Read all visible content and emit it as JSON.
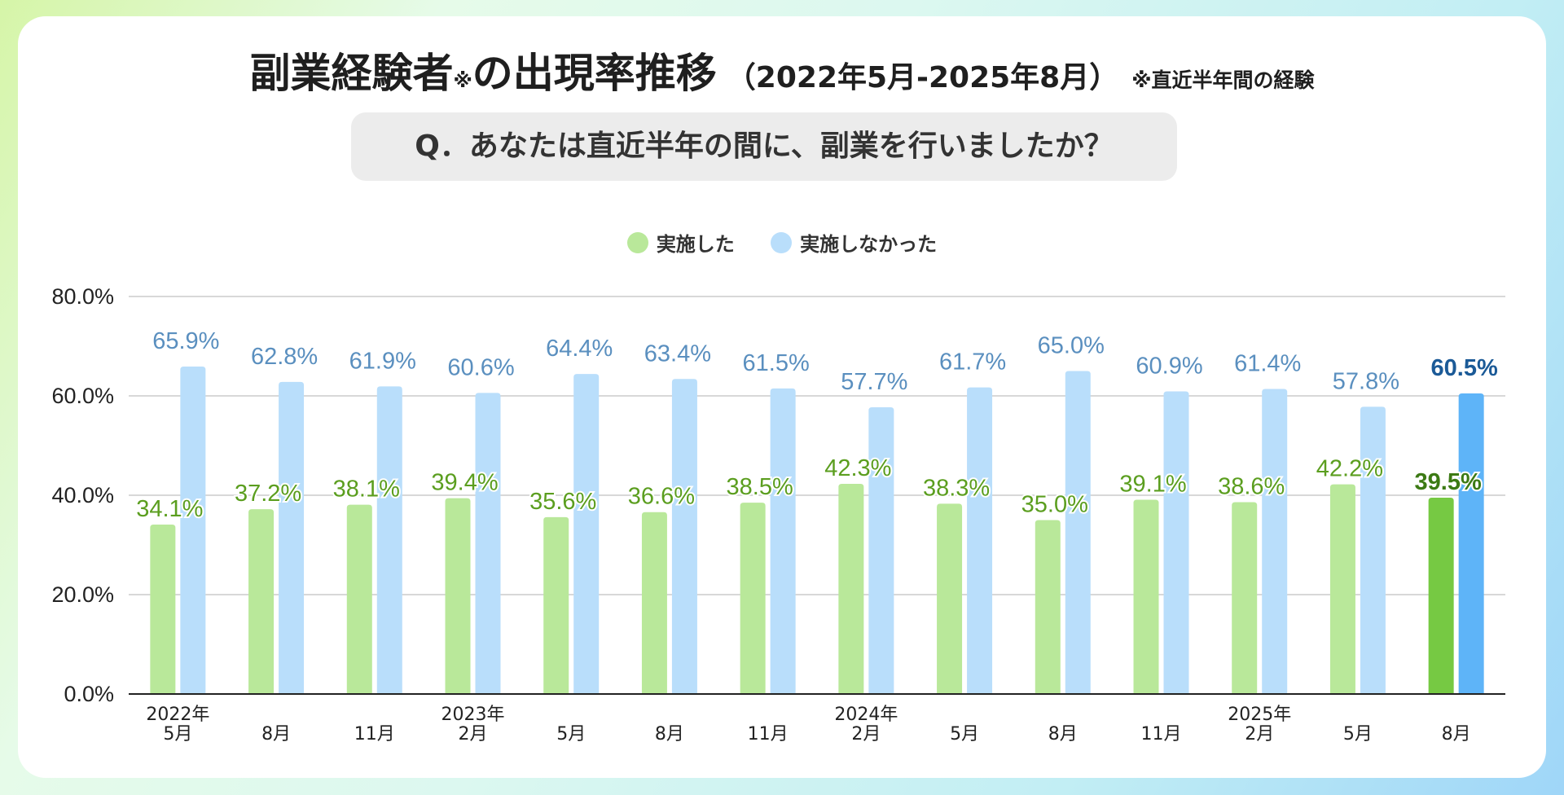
{
  "title": {
    "main": "副業経験者",
    "mark": "※",
    "main2": "の出現率推移",
    "period": "（2022年5月-2025年8月）",
    "note": "※直近半年間の経験"
  },
  "question": "Q．あなたは直近半年の間に、副業を行いましたか？",
  "colors": {
    "did": "#b9e89a",
    "did_highlight": "#76c943",
    "did_label": "#5b9e1f",
    "did_label_highlight": "#3c7a14",
    "not": "#b9defb",
    "not_highlight": "#5eb4f8",
    "not_label": "#5a8fbf",
    "not_label_highlight": "#1b5a97",
    "grid": "#cccccc",
    "axis": "#222222"
  },
  "chart_data": {
    "type": "bar",
    "legend": [
      "実施した",
      "実施しなかった"
    ],
    "legend_position": "top-center",
    "categories": [
      [
        "2022年",
        "5月"
      ],
      [
        "8月"
      ],
      [
        "11月"
      ],
      [
        "2023年",
        "2月"
      ],
      [
        "5月"
      ],
      [
        "8月"
      ],
      [
        "11月"
      ],
      [
        "2024年",
        "2月"
      ],
      [
        "5月"
      ],
      [
        "8月"
      ],
      [
        "11月"
      ],
      [
        "2025年",
        "2月"
      ],
      [
        "5月"
      ],
      [
        "8月"
      ]
    ],
    "series": [
      {
        "name": "実施した",
        "values": [
          34.1,
          37.2,
          38.1,
          39.4,
          35.6,
          36.6,
          38.5,
          42.3,
          38.3,
          35.0,
          39.1,
          38.6,
          42.2,
          39.5
        ],
        "labels": [
          "34.1%",
          "37.2%",
          "38.1%",
          "39.4%",
          "35.6%",
          "36.6%",
          "38.5%",
          "42.3%",
          "38.3%",
          "35.0%",
          "39.1%",
          "38.6%",
          "42.2%",
          "39.5%"
        ]
      },
      {
        "name": "実施しなかった",
        "values": [
          65.9,
          62.8,
          61.9,
          60.6,
          64.4,
          63.4,
          61.5,
          57.7,
          61.7,
          65.0,
          60.9,
          61.4,
          57.8,
          60.5
        ],
        "labels": [
          "65.9%",
          "62.8%",
          "61.9%",
          "60.6%",
          "64.4%",
          "63.4%",
          "61.5%",
          "57.7%",
          "61.7%",
          "65.0%",
          "60.9%",
          "61.4%",
          "57.8%",
          "60.5%"
        ]
      }
    ],
    "ylim": [
      0,
      80
    ],
    "yticks": [
      0,
      20,
      40,
      60,
      80
    ],
    "ytick_labels": [
      "0.0%",
      "20.0%",
      "40.0%",
      "60.0%",
      "80.0%"
    ],
    "highlight_index": 13,
    "grid": true
  }
}
